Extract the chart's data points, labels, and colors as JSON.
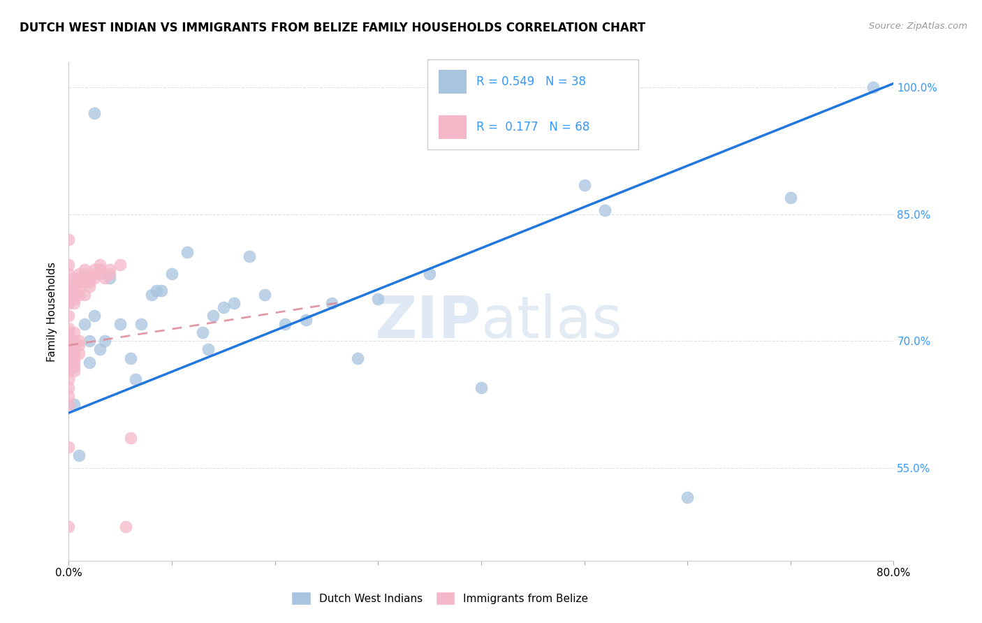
{
  "title": "DUTCH WEST INDIAN VS IMMIGRANTS FROM BELIZE FAMILY HOUSEHOLDS CORRELATION CHART",
  "source": "Source: ZipAtlas.com",
  "ylabel": "Family Households",
  "x_min": 0.0,
  "x_max": 0.8,
  "y_min": 0.44,
  "y_max": 1.03,
  "x_ticks": [
    0.0,
    0.1,
    0.2,
    0.3,
    0.4,
    0.5,
    0.6,
    0.7,
    0.8
  ],
  "y_ticks": [
    0.55,
    0.7,
    0.85,
    1.0
  ],
  "y_tick_labels": [
    "55.0%",
    "70.0%",
    "85.0%",
    "100.0%"
  ],
  "blue_color": "#a8c4e0",
  "pink_color": "#f4b8c8",
  "blue_line_color": "#2277dd",
  "pink_line_color": "#dd8899",
  "grid_color": "#dddddd",
  "watermark_zip": "ZIP",
  "watermark_atlas": "atlas",
  "blue_r": 0.549,
  "blue_n": 38,
  "pink_r": 0.177,
  "pink_n": 68,
  "blue_points_x": [
    0.005,
    0.01,
    0.015,
    0.02,
    0.02,
    0.025,
    0.025,
    0.03,
    0.035,
    0.04,
    0.05,
    0.06,
    0.065,
    0.07,
    0.08,
    0.085,
    0.09,
    0.1,
    0.115,
    0.13,
    0.135,
    0.14,
    0.15,
    0.16,
    0.175,
    0.19,
    0.21,
    0.23,
    0.255,
    0.28,
    0.3,
    0.35,
    0.4,
    0.5,
    0.52,
    0.6,
    0.7,
    0.78
  ],
  "blue_points_y": [
    0.625,
    0.565,
    0.72,
    0.7,
    0.675,
    0.73,
    0.97,
    0.69,
    0.7,
    0.775,
    0.72,
    0.68,
    0.655,
    0.72,
    0.755,
    0.76,
    0.76,
    0.78,
    0.805,
    0.71,
    0.69,
    0.73,
    0.74,
    0.745,
    0.8,
    0.755,
    0.72,
    0.725,
    0.745,
    0.68,
    0.75,
    0.78,
    0.645,
    0.885,
    0.855,
    0.515,
    0.87,
    1.0
  ],
  "pink_points_x": [
    0.0,
    0.0,
    0.0,
    0.0,
    0.0,
    0.0,
    0.0,
    0.0,
    0.0,
    0.0,
    0.0,
    0.0,
    0.0,
    0.0,
    0.0,
    0.0,
    0.0,
    0.0,
    0.0,
    0.0,
    0.0,
    0.0,
    0.0,
    0.005,
    0.005,
    0.005,
    0.005,
    0.005,
    0.005,
    0.005,
    0.005,
    0.005,
    0.005,
    0.005,
    0.005,
    0.005,
    0.005,
    0.005,
    0.01,
    0.01,
    0.01,
    0.01,
    0.01,
    0.01,
    0.01,
    0.01,
    0.015,
    0.015,
    0.015,
    0.015,
    0.015,
    0.02,
    0.02,
    0.02,
    0.025,
    0.025,
    0.025,
    0.03,
    0.03,
    0.03,
    0.035,
    0.04,
    0.04,
    0.05,
    0.055,
    0.06,
    0.0,
    0.0
  ],
  "pink_points_y": [
    0.82,
    0.79,
    0.78,
    0.76,
    0.755,
    0.75,
    0.745,
    0.73,
    0.71,
    0.7,
    0.695,
    0.69,
    0.685,
    0.68,
    0.675,
    0.67,
    0.665,
    0.655,
    0.645,
    0.635,
    0.625,
    0.575,
    0.48,
    0.775,
    0.77,
    0.765,
    0.76,
    0.755,
    0.75,
    0.745,
    0.71,
    0.7,
    0.695,
    0.685,
    0.68,
    0.675,
    0.67,
    0.665,
    0.78,
    0.775,
    0.77,
    0.765,
    0.755,
    0.7,
    0.695,
    0.685,
    0.785,
    0.78,
    0.775,
    0.77,
    0.755,
    0.775,
    0.77,
    0.765,
    0.785,
    0.78,
    0.775,
    0.79,
    0.785,
    0.78,
    0.775,
    0.785,
    0.78,
    0.79,
    0.48,
    0.585,
    0.715,
    0.705
  ],
  "blue_trend_x0": 0.0,
  "blue_trend_x1": 0.8,
  "blue_trend_y0": 0.615,
  "blue_trend_y1": 1.005,
  "pink_trend_x0": 0.0,
  "pink_trend_x1": 0.26,
  "pink_trend_y0": 0.695,
  "pink_trend_y1": 0.745
}
